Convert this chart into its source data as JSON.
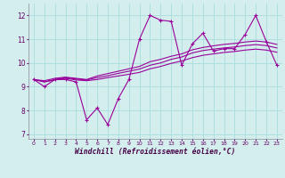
{
  "background_color": "#d4eeee",
  "grid_color": "#aadddd",
  "line_color": "#990099",
  "xlabel": "Windchill (Refroidissement éolien,°C)",
  "ylabel_ticks": [
    7,
    8,
    9,
    10,
    11,
    12
  ],
  "xlim": [
    -0.5,
    23.5
  ],
  "ylim": [
    6.8,
    12.5
  ],
  "x_ticks": [
    0,
    1,
    2,
    3,
    4,
    5,
    6,
    7,
    8,
    9,
    10,
    11,
    12,
    13,
    14,
    15,
    16,
    17,
    18,
    19,
    20,
    21,
    22,
    23
  ],
  "series": [
    [
      9.3,
      9.0,
      9.3,
      9.3,
      9.2,
      7.6,
      8.1,
      7.4,
      8.5,
      9.3,
      11.0,
      12.0,
      11.8,
      11.75,
      9.9,
      10.8,
      11.25,
      10.5,
      10.6,
      10.6,
      11.2,
      12.0,
      10.9,
      9.9
    ],
    [
      9.3,
      9.25,
      9.35,
      9.4,
      9.35,
      9.3,
      9.45,
      9.55,
      9.65,
      9.75,
      9.85,
      10.05,
      10.15,
      10.28,
      10.38,
      10.55,
      10.65,
      10.72,
      10.78,
      10.82,
      10.88,
      10.92,
      10.88,
      10.78
    ],
    [
      9.3,
      9.2,
      9.3,
      9.38,
      9.32,
      9.28,
      9.38,
      9.46,
      9.56,
      9.65,
      9.74,
      9.9,
      10.0,
      10.15,
      10.25,
      10.42,
      10.52,
      10.58,
      10.63,
      10.67,
      10.73,
      10.77,
      10.73,
      10.63
    ],
    [
      9.3,
      9.2,
      9.28,
      9.35,
      9.28,
      9.25,
      9.3,
      9.38,
      9.45,
      9.52,
      9.6,
      9.75,
      9.85,
      9.98,
      10.08,
      10.22,
      10.32,
      10.38,
      10.44,
      10.48,
      10.54,
      10.58,
      10.54,
      10.45
    ]
  ],
  "markers_series0": true,
  "marker_indices": [
    0,
    1,
    2,
    3,
    4,
    5,
    6,
    7,
    8,
    9,
    10,
    11,
    12,
    13,
    14,
    15,
    16,
    17,
    18,
    19,
    20,
    21,
    22,
    23
  ]
}
